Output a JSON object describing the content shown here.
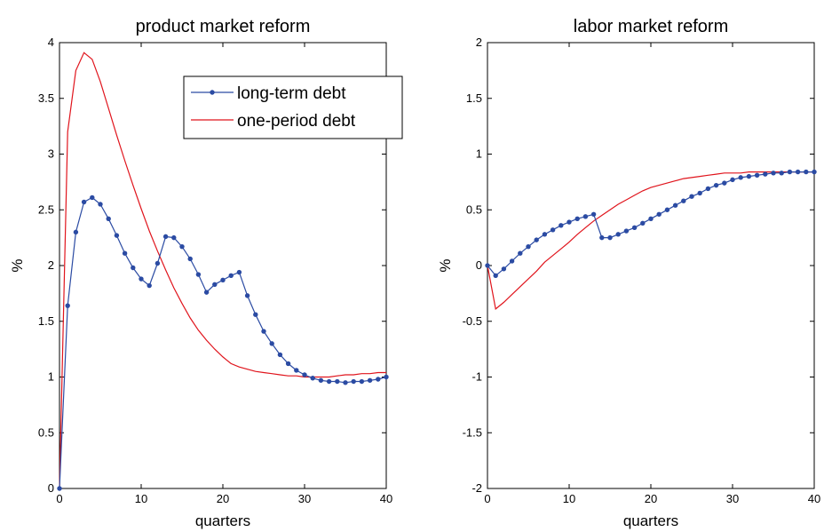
{
  "chart_data": [
    {
      "type": "line",
      "title": "product market reform",
      "xlabel": "quarters",
      "ylabel": "%",
      "xlim": [
        0,
        40
      ],
      "ylim": [
        0,
        4
      ],
      "xticks": [
        0,
        10,
        20,
        30,
        40
      ],
      "yticks": [
        0,
        0.5,
        1,
        1.5,
        2,
        2.5,
        3,
        3.5,
        4
      ],
      "ytick_labels": [
        "0",
        "0.5",
        "1",
        "1.5",
        "2",
        "2.5",
        "3",
        "3.5",
        "4"
      ],
      "grid": false,
      "legend": "top-right",
      "series": [
        {
          "name": "long-term debt",
          "color": "#2b4ba3",
          "marker": "dot",
          "x": [
            0,
            1,
            2,
            3,
            4,
            5,
            6,
            7,
            8,
            9,
            10,
            11,
            12,
            13,
            14,
            15,
            16,
            17,
            18,
            19,
            20,
            21,
            22,
            23,
            24,
            25,
            26,
            27,
            28,
            29,
            30,
            31,
            32,
            33,
            34,
            35,
            36,
            37,
            38,
            39,
            40
          ],
          "y": [
            0,
            1.64,
            2.3,
            2.57,
            2.61,
            2.55,
            2.42,
            2.27,
            2.11,
            1.98,
            1.88,
            1.82,
            2.02,
            2.26,
            2.25,
            2.17,
            2.06,
            1.92,
            1.76,
            1.83,
            1.87,
            1.91,
            1.94,
            1.73,
            1.56,
            1.41,
            1.3,
            1.2,
            1.12,
            1.06,
            1.02,
            0.99,
            0.97,
            0.96,
            0.96,
            0.95,
            0.96,
            0.96,
            0.97,
            0.98,
            1.0
          ]
        },
        {
          "name": "one-period debt",
          "color": "#e0141c",
          "marker": "none",
          "x": [
            0,
            1,
            2,
            3,
            4,
            5,
            6,
            7,
            8,
            9,
            10,
            11,
            12,
            13,
            14,
            15,
            16,
            17,
            18,
            19,
            20,
            21,
            22,
            23,
            24,
            25,
            26,
            27,
            28,
            29,
            30,
            31,
            32,
            33,
            34,
            35,
            36,
            37,
            38,
            39,
            40
          ],
          "y": [
            0,
            3.2,
            3.75,
            3.91,
            3.85,
            3.65,
            3.41,
            3.17,
            2.94,
            2.72,
            2.51,
            2.31,
            2.13,
            1.96,
            1.8,
            1.66,
            1.53,
            1.42,
            1.33,
            1.25,
            1.18,
            1.12,
            1.09,
            1.07,
            1.05,
            1.04,
            1.03,
            1.02,
            1.01,
            1.01,
            1.0,
            1.0,
            1.0,
            1.0,
            1.01,
            1.02,
            1.02,
            1.03,
            1.03,
            1.04,
            1.04
          ]
        }
      ]
    },
    {
      "type": "line",
      "title": "labor market reform",
      "xlabel": "quarters",
      "ylabel": "%",
      "xlim": [
        0,
        40
      ],
      "ylim": [
        -2,
        2
      ],
      "xticks": [
        0,
        10,
        20,
        30,
        40
      ],
      "yticks": [
        -2,
        -1.5,
        -1,
        -0.5,
        0,
        0.5,
        1,
        1.5,
        2
      ],
      "ytick_labels": [
        "-2",
        "-1.5",
        "-1",
        "-0.5",
        "0",
        "0.5",
        "1",
        "1.5",
        "2"
      ],
      "grid": false,
      "legend": "none",
      "series": [
        {
          "color": "#2b4ba3",
          "marker": "dot",
          "x": [
            0,
            1,
            2,
            3,
            4,
            5,
            6,
            7,
            8,
            9,
            10,
            11,
            12,
            13,
            14,
            15,
            16,
            17,
            18,
            19,
            20,
            21,
            22,
            23,
            24,
            25,
            26,
            27,
            28,
            29,
            30,
            31,
            32,
            33,
            34,
            35,
            36,
            37,
            38,
            39,
            40
          ],
          "y": [
            0,
            -0.09,
            -0.03,
            0.04,
            0.11,
            0.17,
            0.23,
            0.28,
            0.32,
            0.36,
            0.39,
            0.42,
            0.44,
            0.46,
            0.25,
            0.25,
            0.28,
            0.31,
            0.34,
            0.38,
            0.42,
            0.46,
            0.5,
            0.54,
            0.58,
            0.62,
            0.65,
            0.69,
            0.72,
            0.74,
            0.77,
            0.79,
            0.8,
            0.81,
            0.82,
            0.83,
            0.83,
            0.84,
            0.84,
            0.84,
            0.84
          ]
        },
        {
          "color": "#e0141c",
          "marker": "none",
          "x": [
            0,
            1,
            2,
            3,
            4,
            5,
            6,
            7,
            8,
            9,
            10,
            11,
            12,
            13,
            14,
            15,
            16,
            17,
            18,
            19,
            20,
            21,
            22,
            23,
            24,
            25,
            26,
            27,
            28,
            29,
            30,
            31,
            32,
            33,
            34,
            35,
            36,
            37,
            38,
            39,
            40
          ],
          "y": [
            0,
            -0.39,
            -0.33,
            -0.26,
            -0.19,
            -0.12,
            -0.05,
            0.03,
            0.09,
            0.15,
            0.21,
            0.28,
            0.34,
            0.4,
            0.45,
            0.5,
            0.55,
            0.59,
            0.63,
            0.67,
            0.7,
            0.72,
            0.74,
            0.76,
            0.78,
            0.79,
            0.8,
            0.81,
            0.82,
            0.83,
            0.83,
            0.83,
            0.84,
            0.84,
            0.84,
            0.84,
            0.84,
            0.84,
            0.84,
            0.84,
            0.84
          ]
        }
      ]
    }
  ]
}
